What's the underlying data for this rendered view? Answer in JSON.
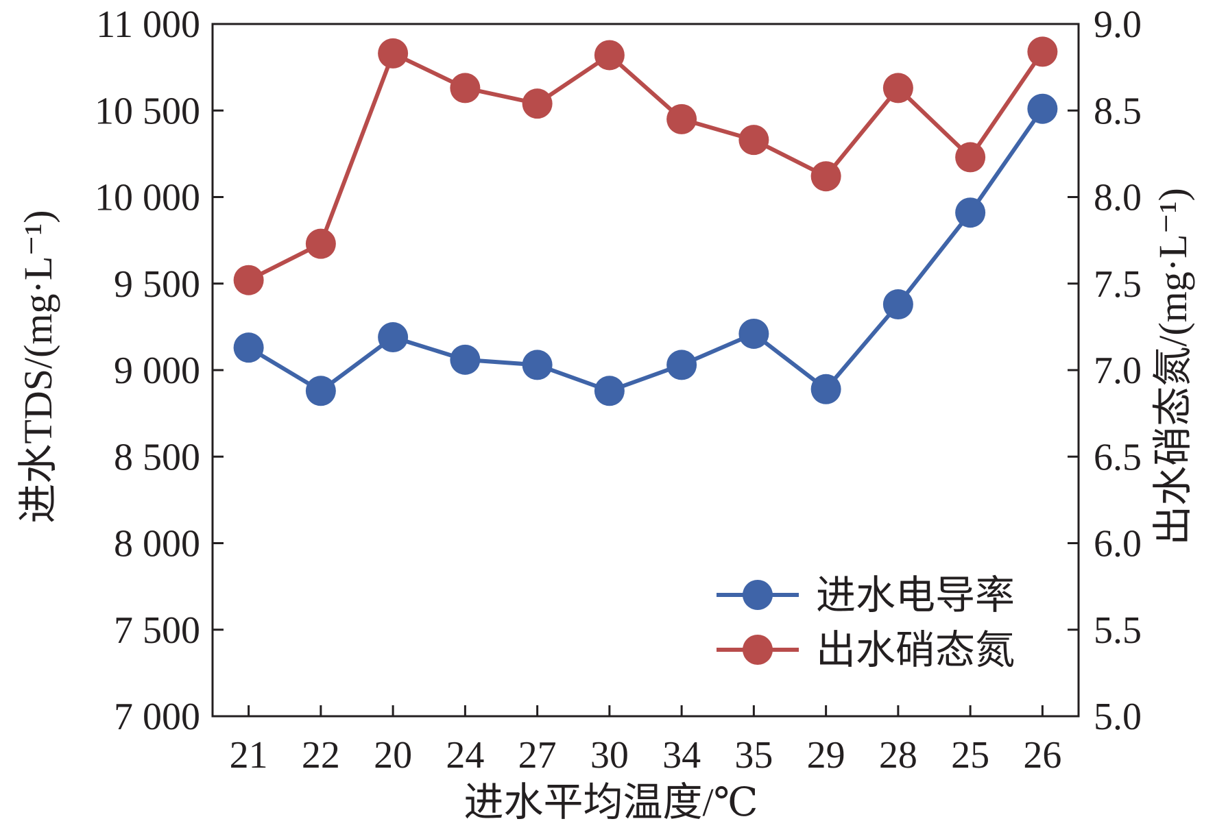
{
  "chart_data": {
    "type": "line",
    "categories": [
      "21",
      "22",
      "20",
      "24",
      "27",
      "30",
      "34",
      "35",
      "29",
      "28",
      "25",
      "26"
    ],
    "xlabel": "进水平均温度/℃",
    "ylabel_left": "进水TDS/(mg·L⁻¹)",
    "ylabel_right": "出水硝态氮/(mg·L⁻¹)",
    "ylim_left": [
      7000,
      11000
    ],
    "ylim_right": [
      5.0,
      9.0
    ],
    "yticks_left": [
      7000,
      7500,
      8000,
      8500,
      9000,
      9500,
      10000,
      10500,
      11000
    ],
    "yticks_left_labels": [
      "7 000",
      "7 500",
      "8 000",
      "8 500",
      "9 000",
      "9 500",
      "10 000",
      "10 500",
      "11 000"
    ],
    "yticks_right": [
      5.0,
      5.5,
      6.0,
      6.5,
      7.0,
      7.5,
      8.0,
      8.5,
      9.0
    ],
    "yticks_right_labels": [
      "5.0",
      "5.5",
      "6.0",
      "6.5",
      "7.0",
      "7.5",
      "8.0",
      "8.5",
      "9.0"
    ],
    "grid": false,
    "legend_position": "bottom-right",
    "series": [
      {
        "name": "进水电导率",
        "axis": "left",
        "color": "#3f64a8",
        "values": [
          9130,
          8880,
          9190,
          9060,
          9030,
          8880,
          9030,
          9210,
          8890,
          9380,
          9910,
          10510
        ]
      },
      {
        "name": "出水硝态氮",
        "axis": "right",
        "color": "#b84c4b",
        "values": [
          7.52,
          7.73,
          8.83,
          8.63,
          8.54,
          8.82,
          8.45,
          8.33,
          8.12,
          8.63,
          8.23,
          8.84
        ]
      }
    ]
  }
}
